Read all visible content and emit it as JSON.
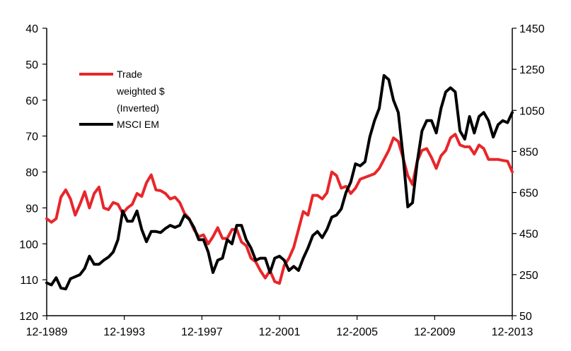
{
  "chart_data": {
    "type": "line",
    "title": "",
    "xlabel": "",
    "x_tick_labels": [
      "12-1989",
      "12-1993",
      "12-1997",
      "12-2001",
      "12-2005",
      "12-2009",
      "12-2013"
    ],
    "x_range": [
      1989.92,
      2014.42
    ],
    "left_axis": {
      "reversed": true,
      "range": [
        40,
        120
      ],
      "ticks": [
        "40",
        "50",
        "60",
        "70",
        "80",
        "90",
        "100",
        "110",
        "120"
      ]
    },
    "right_axis": {
      "reversed": false,
      "range": [
        50,
        1450
      ],
      "ticks": [
        "50",
        "250",
        "450",
        "650",
        "850",
        "1050",
        "1250",
        "1450"
      ]
    },
    "legend": {
      "placement": "upper-left",
      "entries": [
        {
          "lines": [
            "Trade",
            "weighted $",
            "(Inverted)"
          ],
          "color": "#e8262a"
        },
        {
          "lines": [
            "MSCI EM"
          ],
          "color": "#000000"
        }
      ]
    },
    "series": [
      {
        "name": "Trade weighted $ (Inverted)",
        "axis": "left",
        "color": "#e8262a",
        "points": [
          [
            1989.92,
            93
          ],
          [
            1990.17,
            94
          ],
          [
            1990.42,
            93
          ],
          [
            1990.67,
            87
          ],
          [
            1990.92,
            85
          ],
          [
            1991.17,
            87.5
          ],
          [
            1991.42,
            92
          ],
          [
            1991.67,
            89
          ],
          [
            1991.92,
            85.5
          ],
          [
            1992.17,
            90
          ],
          [
            1992.42,
            86
          ],
          [
            1992.67,
            84.2
          ],
          [
            1992.92,
            90
          ],
          [
            1993.17,
            90.5
          ],
          [
            1993.42,
            88.5
          ],
          [
            1993.67,
            89
          ],
          [
            1993.92,
            91.5
          ],
          [
            1994.17,
            90
          ],
          [
            1994.42,
            89
          ],
          [
            1994.67,
            86
          ],
          [
            1994.92,
            86.8
          ],
          [
            1995.17,
            83
          ],
          [
            1995.42,
            80.8
          ],
          [
            1995.67,
            85
          ],
          [
            1995.92,
            85.2
          ],
          [
            1996.17,
            86
          ],
          [
            1996.42,
            87.5
          ],
          [
            1996.67,
            87
          ],
          [
            1996.92,
            88.5
          ],
          [
            1997.17,
            91.5
          ],
          [
            1997.42,
            93
          ],
          [
            1997.67,
            96
          ],
          [
            1997.92,
            98
          ],
          [
            1998.17,
            97.5
          ],
          [
            1998.42,
            100
          ],
          [
            1998.67,
            98
          ],
          [
            1998.92,
            95.5
          ],
          [
            1999.17,
            98.5
          ],
          [
            1999.42,
            98.5
          ],
          [
            1999.67,
            96
          ],
          [
            1999.92,
            96
          ],
          [
            2000.17,
            99.5
          ],
          [
            2000.42,
            100.5
          ],
          [
            2000.67,
            104
          ],
          [
            2000.92,
            105
          ],
          [
            2001.17,
            107.5
          ],
          [
            2001.42,
            109.5
          ],
          [
            2001.67,
            107.5
          ],
          [
            2001.92,
            110.5
          ],
          [
            2002.17,
            111
          ],
          [
            2002.42,
            106
          ],
          [
            2002.67,
            104
          ],
          [
            2002.92,
            101
          ],
          [
            2003.17,
            96
          ],
          [
            2003.42,
            91
          ],
          [
            2003.67,
            92
          ],
          [
            2003.92,
            86.5
          ],
          [
            2004.17,
            86.5
          ],
          [
            2004.42,
            87.5
          ],
          [
            2004.67,
            85.8
          ],
          [
            2004.92,
            80
          ],
          [
            2005.17,
            81
          ],
          [
            2005.42,
            84.5
          ],
          [
            2005.67,
            84
          ],
          [
            2005.92,
            86
          ],
          [
            2006.17,
            84.5
          ],
          [
            2006.42,
            82
          ],
          [
            2006.67,
            81.5
          ],
          [
            2006.92,
            81
          ],
          [
            2007.17,
            80.5
          ],
          [
            2007.42,
            79
          ],
          [
            2007.67,
            76.5
          ],
          [
            2007.92,
            74
          ],
          [
            2008.17,
            70.5
          ],
          [
            2008.42,
            71.5
          ],
          [
            2008.67,
            76
          ],
          [
            2008.92,
            81
          ],
          [
            2009.17,
            83.5
          ],
          [
            2009.42,
            77
          ],
          [
            2009.67,
            74
          ],
          [
            2009.92,
            73.5
          ],
          [
            2010.17,
            76
          ],
          [
            2010.42,
            79
          ],
          [
            2010.67,
            75.5
          ],
          [
            2010.92,
            74
          ],
          [
            2011.17,
            70.5
          ],
          [
            2011.42,
            69.5
          ],
          [
            2011.67,
            72.5
          ],
          [
            2011.92,
            73
          ],
          [
            2012.17,
            73
          ],
          [
            2012.42,
            75
          ],
          [
            2012.67,
            72.5
          ],
          [
            2012.92,
            73.5
          ],
          [
            2013.17,
            76.5
          ],
          [
            2013.42,
            76.5
          ],
          [
            2013.67,
            76.5
          ],
          [
            2013.92,
            76.8
          ],
          [
            2014.17,
            77
          ],
          [
            2014.42,
            80
          ]
        ]
      },
      {
        "name": "MSCI EM",
        "axis": "right",
        "color": "#000000",
        "points": [
          [
            1989.92,
            210
          ],
          [
            1990.17,
            200
          ],
          [
            1990.42,
            235
          ],
          [
            1990.67,
            185
          ],
          [
            1990.92,
            180
          ],
          [
            1991.17,
            230
          ],
          [
            1991.42,
            240
          ],
          [
            1991.67,
            250
          ],
          [
            1991.92,
            280
          ],
          [
            1992.17,
            340
          ],
          [
            1992.42,
            300
          ],
          [
            1992.67,
            300
          ],
          [
            1992.92,
            320
          ],
          [
            1993.17,
            335
          ],
          [
            1993.42,
            360
          ],
          [
            1993.67,
            420
          ],
          [
            1993.92,
            560
          ],
          [
            1994.17,
            510
          ],
          [
            1994.42,
            510
          ],
          [
            1994.67,
            560
          ],
          [
            1994.92,
            470
          ],
          [
            1995.17,
            410
          ],
          [
            1995.42,
            460
          ],
          [
            1995.67,
            460
          ],
          [
            1995.92,
            455
          ],
          [
            1996.17,
            475
          ],
          [
            1996.42,
            490
          ],
          [
            1996.67,
            480
          ],
          [
            1996.92,
            490
          ],
          [
            1997.17,
            540
          ],
          [
            1997.42,
            520
          ],
          [
            1997.67,
            480
          ],
          [
            1997.92,
            420
          ],
          [
            1998.17,
            420
          ],
          [
            1998.42,
            360
          ],
          [
            1998.67,
            260
          ],
          [
            1998.92,
            320
          ],
          [
            1999.17,
            330
          ],
          [
            1999.42,
            420
          ],
          [
            1999.67,
            400
          ],
          [
            1999.92,
            490
          ],
          [
            2000.17,
            490
          ],
          [
            2000.42,
            420
          ],
          [
            2000.67,
            380
          ],
          [
            2000.92,
            320
          ],
          [
            2001.17,
            330
          ],
          [
            2001.42,
            330
          ],
          [
            2001.67,
            260
          ],
          [
            2001.92,
            330
          ],
          [
            2002.17,
            340
          ],
          [
            2002.42,
            320
          ],
          [
            2002.67,
            270
          ],
          [
            2002.92,
            290
          ],
          [
            2003.17,
            270
          ],
          [
            2003.42,
            330
          ],
          [
            2003.67,
            380
          ],
          [
            2003.92,
            440
          ],
          [
            2004.17,
            460
          ],
          [
            2004.42,
            430
          ],
          [
            2004.67,
            470
          ],
          [
            2004.92,
            530
          ],
          [
            2005.17,
            540
          ],
          [
            2005.42,
            570
          ],
          [
            2005.67,
            650
          ],
          [
            2005.92,
            700
          ],
          [
            2006.17,
            790
          ],
          [
            2006.42,
            780
          ],
          [
            2006.67,
            800
          ],
          [
            2006.92,
            920
          ],
          [
            2007.17,
            1000
          ],
          [
            2007.42,
            1060
          ],
          [
            2007.67,
            1220
          ],
          [
            2007.92,
            1200
          ],
          [
            2008.17,
            1100
          ],
          [
            2008.42,
            1040
          ],
          [
            2008.67,
            830
          ],
          [
            2008.92,
            580
          ],
          [
            2009.17,
            600
          ],
          [
            2009.42,
            800
          ],
          [
            2009.67,
            950
          ],
          [
            2009.92,
            1000
          ],
          [
            2010.17,
            1000
          ],
          [
            2010.42,
            940
          ],
          [
            2010.67,
            1060
          ],
          [
            2010.92,
            1140
          ],
          [
            2011.17,
            1160
          ],
          [
            2011.42,
            1140
          ],
          [
            2011.67,
            950
          ],
          [
            2011.92,
            910
          ],
          [
            2012.17,
            1020
          ],
          [
            2012.42,
            940
          ],
          [
            2012.67,
            1020
          ],
          [
            2012.92,
            1040
          ],
          [
            2013.17,
            1000
          ],
          [
            2013.42,
            920
          ],
          [
            2013.67,
            980
          ],
          [
            2013.92,
            1000
          ],
          [
            2014.17,
            990
          ],
          [
            2014.42,
            1040
          ]
        ]
      }
    ]
  }
}
